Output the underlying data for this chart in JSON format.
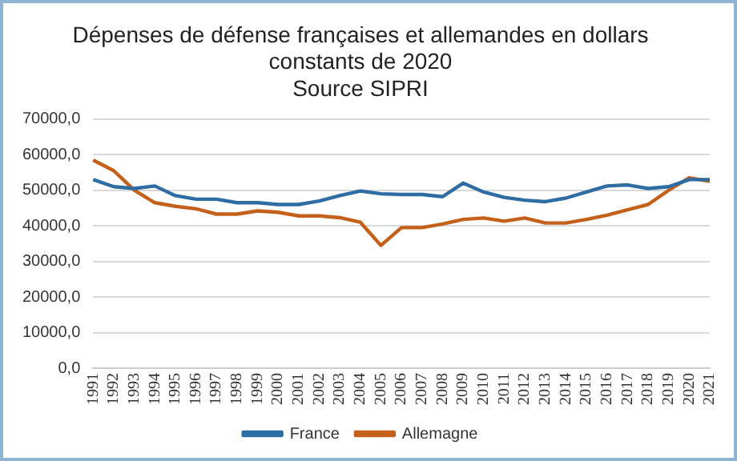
{
  "chart_data": {
    "type": "line",
    "title": "Dépenses de défense françaises et allemandes en dollars constants de 2020",
    "subtitle": "Source SIPRI",
    "categories": [
      "1991",
      "1992",
      "1993",
      "1994",
      "1995",
      "1996",
      "1997",
      "1998",
      "1999",
      "2000",
      "2001",
      "2002",
      "2003",
      "2004",
      "2005",
      "2006",
      "2007",
      "2008",
      "2009",
      "2010",
      "2011",
      "2012",
      "2013",
      "2014",
      "2015",
      "2016",
      "2017",
      "2018",
      "2019",
      "2020",
      "2021"
    ],
    "series": [
      {
        "name": "France",
        "color": "#2e6da4",
        "values": [
          53000,
          51000,
          50500,
          51200,
          48500,
          47500,
          47500,
          46500,
          46500,
          46000,
          46000,
          47000,
          48500,
          49800,
          49000,
          48800,
          48800,
          48200,
          52000,
          49500,
          48000,
          47200,
          46800,
          47800,
          49500,
          51200,
          51500,
          50500,
          51000,
          53000,
          53000
        ]
      },
      {
        "name": "Allemagne",
        "color": "#c5601a",
        "values": [
          58500,
          55500,
          50000,
          46500,
          45500,
          44800,
          43300,
          43300,
          44200,
          43800,
          42800,
          42800,
          42300,
          41000,
          34500,
          39500,
          39500,
          40500,
          41800,
          42200,
          41300,
          42200,
          40800,
          40800,
          41800,
          43000,
          44500,
          46000,
          50000,
          53500,
          52500
        ]
      }
    ],
    "ylim": [
      0,
      70000
    ],
    "yticks": [
      {
        "value": 0,
        "label": "0,0"
      },
      {
        "value": 10000,
        "label": "10000,0"
      },
      {
        "value": 20000,
        "label": "20000,0"
      },
      {
        "value": 30000,
        "label": "30000,0"
      },
      {
        "value": 40000,
        "label": "40000,0"
      },
      {
        "value": 50000,
        "label": "50000,0"
      },
      {
        "value": 60000,
        "label": "60000,0"
      },
      {
        "value": 70000,
        "label": "70000,0"
      }
    ],
    "grid": "y",
    "legend": "bottom",
    "marker": "none",
    "line_style": "solid"
  }
}
